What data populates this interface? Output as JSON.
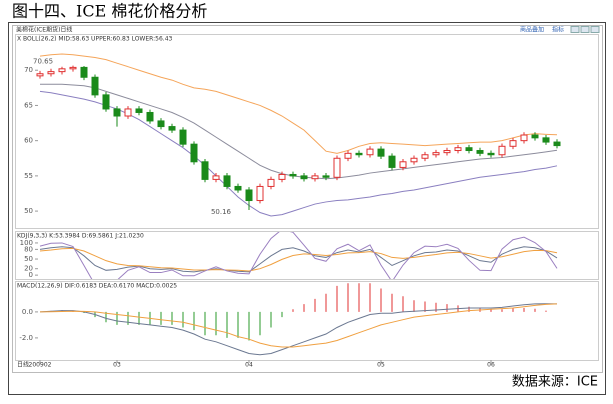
{
  "title": "图十四、ICE 棉花价格分析",
  "source": "数据来源：ICE",
  "toolbar": {
    "label": "美棉花(ICE期货)日线",
    "buttons": [
      "商品叠加",
      "指标"
    ]
  },
  "chart_data": [
    {
      "type": "candlestick",
      "header": "X BOLL(26,2) MID:58.63 UPPER:60.83 LOWER:56.43",
      "up_color": "#e03030",
      "down_color": "#1a8a1a",
      "open": [
        69.2,
        69.5,
        69.8,
        70.2,
        70.4,
        69.0,
        66.5,
        64.5,
        63.5,
        64.5,
        64.0,
        62.8,
        62.0,
        61.5,
        59.5,
        57.0,
        54.5,
        55.0,
        53.5,
        53.0,
        51.5,
        53.5,
        54.5,
        55.2,
        55.0,
        54.6,
        55.0,
        54.8,
        57.5,
        58.2,
        58.0,
        58.8,
        57.8,
        56.2,
        57.0,
        57.5,
        58.0,
        58.3,
        58.6,
        59.0,
        58.6,
        58.2,
        58.0,
        59.2,
        60.0,
        60.8,
        60.4,
        59.8
      ],
      "high": [
        69.9,
        70.2,
        70.5,
        70.65,
        70.6,
        69.4,
        66.9,
        64.9,
        64.9,
        64.9,
        64.4,
        63.2,
        62.4,
        61.9,
        59.9,
        57.4,
        55.4,
        55.4,
        53.9,
        53.4,
        53.9,
        54.9,
        55.6,
        55.6,
        55.4,
        55.4,
        55.4,
        57.9,
        58.6,
        58.6,
        59.2,
        59.2,
        58.2,
        57.4,
        57.9,
        58.4,
        58.7,
        59.0,
        59.4,
        59.4,
        59.0,
        58.6,
        59.6,
        60.4,
        61.2,
        61.2,
        60.8,
        60.2
      ],
      "low": [
        68.8,
        69.1,
        69.4,
        69.8,
        68.6,
        66.1,
        64.1,
        62.0,
        63.1,
        63.6,
        62.4,
        61.6,
        61.1,
        59.1,
        56.6,
        54.1,
        54.1,
        53.1,
        52.6,
        50.16,
        51.1,
        53.1,
        54.1,
        54.6,
        54.2,
        54.2,
        54.4,
        54.4,
        57.1,
        57.6,
        57.6,
        57.4,
        55.8,
        55.8,
        56.6,
        57.1,
        57.6,
        57.9,
        58.2,
        58.2,
        57.8,
        57.6,
        57.6,
        58.8,
        59.6,
        60.0,
        59.4,
        58.9
      ],
      "close": [
        69.5,
        69.8,
        70.2,
        70.4,
        69.0,
        66.5,
        64.5,
        63.5,
        64.5,
        64.0,
        62.8,
        62.0,
        61.5,
        59.5,
        57.0,
        54.5,
        55.0,
        53.5,
        53.0,
        51.5,
        53.5,
        54.5,
        55.2,
        55.0,
        54.6,
        55.0,
        54.8,
        57.5,
        58.2,
        58.0,
        58.8,
        57.8,
        56.2,
        57.0,
        57.5,
        58.0,
        58.3,
        58.6,
        59.0,
        58.6,
        58.2,
        58.0,
        59.2,
        60.0,
        60.8,
        60.4,
        59.8,
        59.3
      ],
      "series": [
        {
          "color": "#f5a55a",
          "values": [
            72.0,
            72.2,
            72.3,
            72.2,
            72.0,
            71.8,
            71.5,
            71.0,
            70.5,
            70.0,
            69.5,
            69.0,
            68.6,
            68.0,
            67.5,
            67.3,
            67.0,
            66.5,
            66.0,
            65.5,
            65.0,
            64.3,
            63.5,
            62.5,
            61.5,
            60.0,
            58.5,
            58.2,
            58.6,
            59.2,
            59.6,
            59.7,
            59.6,
            59.5,
            59.4,
            59.3,
            59.4,
            59.5,
            59.6,
            59.7,
            59.8,
            59.8,
            60.0,
            60.4,
            60.8,
            61.0,
            60.9,
            60.83
          ]
        },
        {
          "color": "#8c8c9c",
          "values": [
            68.0,
            68.0,
            68.0,
            67.9,
            67.8,
            67.5,
            67.0,
            66.5,
            66.0,
            65.5,
            65.0,
            64.5,
            64.0,
            63.3,
            62.5,
            61.5,
            60.5,
            59.5,
            58.5,
            57.5,
            56.5,
            55.8,
            55.3,
            55.0,
            54.8,
            54.7,
            54.6,
            54.7,
            54.9,
            55.1,
            55.4,
            55.6,
            55.8,
            56.0,
            56.2,
            56.4,
            56.6,
            56.8,
            57.0,
            57.2,
            57.4,
            57.5,
            57.6,
            57.8,
            58.0,
            58.2,
            58.4,
            58.63
          ]
        },
        {
          "color": "#8a7fc0",
          "values": [
            67.0,
            66.8,
            66.5,
            66.2,
            65.9,
            65.5,
            65.0,
            64.5,
            63.8,
            63.0,
            62.0,
            61.0,
            60.0,
            59.0,
            57.8,
            56.5,
            55.0,
            53.5,
            52.0,
            50.8,
            49.8,
            49.3,
            49.5,
            50.0,
            50.5,
            51.0,
            51.3,
            51.5,
            51.6,
            51.8,
            52.0,
            52.3,
            52.5,
            52.8,
            53.0,
            53.3,
            53.6,
            53.9,
            54.2,
            54.5,
            54.8,
            55.0,
            55.2,
            55.4,
            55.6,
            55.9,
            56.1,
            56.43
          ]
        }
      ],
      "ylim": [
        47.6,
        75
      ],
      "yticks": [
        50,
        55,
        60,
        65,
        70
      ]
    },
    {
      "type": "line",
      "header": "KDJ(9,3,3) K:53.3984 D:69.5861 J:21.0230",
      "series": [
        {
          "color": "#6b7891",
          "values": [
            80,
            85,
            88,
            85,
            60,
            30,
            15,
            18,
            25,
            28,
            20,
            18,
            20,
            12,
            10,
            15,
            20,
            15,
            12,
            10,
            35,
            60,
            80,
            85,
            75,
            60,
            55,
            70,
            78,
            72,
            80,
            55,
            30,
            45,
            60,
            70,
            72,
            78,
            75,
            60,
            45,
            40,
            65,
            80,
            88,
            85,
            75,
            53.4
          ]
        },
        {
          "color": "#f0a040",
          "values": [
            75,
            78,
            82,
            83,
            75,
            60,
            45,
            35,
            30,
            29,
            26,
            23,
            22,
            19,
            16,
            16,
            17,
            16,
            15,
            13,
            20,
            33,
            49,
            61,
            66,
            64,
            61,
            64,
            69,
            70,
            73,
            67,
            55,
            52,
            55,
            60,
            64,
            69,
            71,
            67,
            60,
            53,
            57,
            65,
            73,
            77,
            76,
            69.6
          ]
        },
        {
          "color": "#9a7fc0",
          "values": [
            90,
            99,
            100,
            89,
            30,
            -30,
            -45,
            -16,
            15,
            26,
            8,
            8,
            16,
            -2,
            -2,
            13,
            26,
            13,
            6,
            4,
            65,
            114,
            142,
            133,
            93,
            52,
            43,
            82,
            96,
            76,
            94,
            31,
            -20,
            31,
            70,
            90,
            88,
            96,
            83,
            46,
            15,
            14,
            81,
            110,
            118,
            101,
            73,
            21.0
          ]
        }
      ],
      "ylim": [
        -12,
        134
      ],
      "yticks": [
        0,
        20,
        50,
        80,
        100
      ]
    },
    {
      "type": "macd",
      "header": "MACD(12,26,9) DIF:0.6183 DEA:0.6170 MACD:0.0025",
      "up_color": "#e03030",
      "down_color": "#2a9a2a",
      "histogram": [
        0,
        0.08,
        0.14,
        0.1,
        -0.08,
        -0.4,
        -0.8,
        -1.0,
        -1.0,
        -1.0,
        -1.0,
        -1.0,
        -1.0,
        -1.2,
        -1.4,
        -1.8,
        -1.8,
        -2.0,
        -2.0,
        -2.2,
        -1.8,
        -1.2,
        -0.4,
        0.2,
        0.6,
        1.0,
        1.4,
        2.0,
        2.2,
        2.2,
        2.2,
        1.8,
        1.4,
        1.2,
        0.9,
        0.8,
        0.7,
        0.6,
        0.5,
        0.4,
        0.3,
        0.2,
        0.2,
        0.3,
        0.3,
        0.24,
        0.1,
        0.0025
      ],
      "series": [
        {
          "color": "#6b7891",
          "values": [
            0.0,
            0.05,
            0.1,
            0.1,
            0.0,
            -0.2,
            -0.5,
            -0.7,
            -0.8,
            -0.9,
            -1.0,
            -1.1,
            -1.2,
            -1.4,
            -1.7,
            -2.1,
            -2.3,
            -2.6,
            -2.9,
            -3.2,
            -3.3,
            -3.2,
            -2.9,
            -2.6,
            -2.3,
            -2.0,
            -1.7,
            -1.2,
            -0.8,
            -0.5,
            -0.2,
            -0.1,
            -0.1,
            0.0,
            0.05,
            0.1,
            0.15,
            0.2,
            0.25,
            0.3,
            0.3,
            0.3,
            0.35,
            0.45,
            0.55,
            0.62,
            0.63,
            0.6183
          ]
        },
        {
          "color": "#f0a040",
          "values": [
            0.0,
            0.01,
            0.03,
            0.05,
            0.04,
            0.0,
            -0.1,
            -0.2,
            -0.3,
            -0.4,
            -0.5,
            -0.6,
            -0.7,
            -0.8,
            -1.0,
            -1.2,
            -1.4,
            -1.6,
            -1.9,
            -2.1,
            -2.4,
            -2.6,
            -2.7,
            -2.7,
            -2.6,
            -2.5,
            -2.4,
            -2.2,
            -1.9,
            -1.6,
            -1.3,
            -1.0,
            -0.8,
            -0.6,
            -0.4,
            -0.3,
            -0.2,
            -0.1,
            0.0,
            0.1,
            0.15,
            0.2,
            0.25,
            0.3,
            0.4,
            0.5,
            0.58,
            0.617
          ]
        }
      ],
      "ylim": [
        -3.7,
        2.3
      ],
      "yticks": [
        {
          "value": 0,
          "label": "0.0"
        },
        {
          "value": -2,
          "label": "-2.0"
        }
      ],
      "period_label": "日线",
      "xticks": [
        {
          "value": 0,
          "label": "200902"
        },
        {
          "value": 7,
          "label": "03"
        },
        {
          "value": 19,
          "label": "04"
        },
        {
          "value": 31,
          "label": "05"
        },
        {
          "value": 41,
          "label": "06"
        }
      ]
    }
  ]
}
